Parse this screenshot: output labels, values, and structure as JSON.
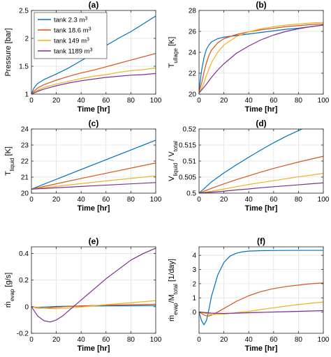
{
  "chart_data": [
    {
      "type": "line",
      "title": "(a)",
      "xlabel": "Time [hr]",
      "ylabel": "Pressure [bar]",
      "xlim": [
        0,
        100
      ],
      "ylim": [
        1,
        2.5
      ],
      "xticks": [
        0,
        20,
        40,
        60,
        80,
        100
      ],
      "yticks": [
        1,
        1.5,
        2,
        2.5
      ],
      "ytick_labels": [
        "1",
        "1.5",
        "2",
        "2.5"
      ],
      "legend": {
        "position": "top-left",
        "entries": [
          "tank 2.3 m3",
          "tank 18.6 m3",
          "tank 149 m3",
          "tank 1189 m3"
        ]
      },
      "series": [
        {
          "name": "tank 2.3 m3",
          "color": "#0072BD",
          "x": [
            0,
            2,
            5,
            10,
            15,
            20,
            30,
            40,
            50,
            60,
            70,
            80,
            90,
            100
          ],
          "y": [
            1.0,
            1.11,
            1.19,
            1.26,
            1.31,
            1.36,
            1.47,
            1.6,
            1.73,
            1.87,
            2.0,
            2.12,
            2.26,
            2.4
          ]
        },
        {
          "name": "tank 18.6 m3",
          "color": "#D95319",
          "x": [
            0,
            2,
            5,
            10,
            15,
            20,
            30,
            40,
            50,
            60,
            70,
            80,
            90,
            100
          ],
          "y": [
            1.0,
            1.05,
            1.11,
            1.17,
            1.21,
            1.25,
            1.32,
            1.38,
            1.43,
            1.49,
            1.55,
            1.61,
            1.67,
            1.73
          ]
        },
        {
          "name": "tank 149 m3",
          "color": "#EDB120",
          "x": [
            0,
            2,
            5,
            10,
            15,
            20,
            30,
            40,
            50,
            60,
            70,
            80,
            90,
            100
          ],
          "y": [
            1.0,
            1.03,
            1.07,
            1.12,
            1.15,
            1.18,
            1.23,
            1.28,
            1.32,
            1.35,
            1.39,
            1.42,
            1.44,
            1.47
          ]
        },
        {
          "name": "tank 1189 m3",
          "color": "#7E2F8E",
          "x": [
            0,
            2,
            5,
            10,
            15,
            20,
            30,
            40,
            50,
            60,
            70,
            80,
            90,
            100
          ],
          "y": [
            1.0,
            1.02,
            1.05,
            1.09,
            1.12,
            1.15,
            1.2,
            1.24,
            1.27,
            1.3,
            1.32,
            1.34,
            1.35,
            1.37
          ]
        }
      ]
    },
    {
      "type": "line",
      "title": "(b)",
      "xlabel": "Time [hr]",
      "ylabel": "T",
      "ylabel_sub": "ullage",
      "ylabel_suffix": " [K]",
      "xlim": [
        0,
        100
      ],
      "ylim": [
        20,
        28
      ],
      "xticks": [
        0,
        20,
        40,
        60,
        80,
        100
      ],
      "yticks": [
        20,
        22,
        24,
        26,
        28
      ],
      "ytick_labels": [
        "20",
        "22",
        "24",
        "26",
        "28"
      ],
      "series": [
        {
          "name": "tank 2.3 m3",
          "color": "#0072BD",
          "x": [
            0,
            2,
            4,
            6,
            8,
            10,
            15,
            20,
            30,
            40,
            50,
            60,
            70,
            80,
            90,
            100
          ],
          "y": [
            20.3,
            22.2,
            23.5,
            24.3,
            24.7,
            25.0,
            25.3,
            25.45,
            25.6,
            25.75,
            25.9,
            26.05,
            26.2,
            26.3,
            26.45,
            26.6
          ]
        },
        {
          "name": "tank 18.6 m3",
          "color": "#D95319",
          "x": [
            0,
            2,
            4,
            6,
            8,
            10,
            15,
            20,
            30,
            40,
            50,
            60,
            70,
            80,
            90,
            100
          ],
          "y": [
            20.2,
            21.0,
            22.1,
            23.0,
            23.7,
            24.2,
            24.9,
            25.3,
            25.7,
            25.95,
            26.15,
            26.3,
            26.45,
            26.55,
            26.65,
            26.7
          ]
        },
        {
          "name": "tank 149 m3",
          "color": "#EDB120",
          "x": [
            0,
            2,
            4,
            6,
            8,
            10,
            15,
            20,
            30,
            40,
            50,
            60,
            70,
            80,
            90,
            100
          ],
          "y": [
            20.1,
            20.5,
            21.1,
            21.8,
            22.4,
            23.0,
            24.0,
            24.7,
            25.5,
            25.95,
            26.25,
            26.45,
            26.6,
            26.7,
            26.8,
            26.85
          ]
        },
        {
          "name": "tank 1189 m3",
          "color": "#7E2F8E",
          "x": [
            0,
            5,
            10,
            15,
            20,
            30,
            40,
            50,
            60,
            70,
            80,
            90,
            100
          ],
          "y": [
            20.1,
            20.8,
            21.6,
            22.3,
            22.9,
            23.9,
            24.6,
            25.2,
            25.65,
            26.0,
            26.25,
            26.45,
            26.6
          ]
        }
      ]
    },
    {
      "type": "line",
      "title": "(c)",
      "xlabel": "Time [hr]",
      "ylabel": "T",
      "ylabel_sub": "liquid",
      "ylabel_suffix": " [K]",
      "xlim": [
        0,
        100
      ],
      "ylim": [
        20,
        24
      ],
      "xticks": [
        0,
        20,
        40,
        60,
        80,
        100
      ],
      "yticks": [
        20,
        21,
        22,
        23,
        24
      ],
      "ytick_labels": [
        "20",
        "21",
        "22",
        "23",
        "24"
      ],
      "series": [
        {
          "name": "tank 2.3 m3",
          "color": "#0072BD",
          "x": [
            0,
            50,
            100
          ],
          "y": [
            20.25,
            21.78,
            23.3
          ]
        },
        {
          "name": "tank 18.6 m3",
          "color": "#D95319",
          "x": [
            0,
            50,
            100
          ],
          "y": [
            20.25,
            21.08,
            21.88
          ]
        },
        {
          "name": "tank 149 m3",
          "color": "#EDB120",
          "x": [
            0,
            50,
            100
          ],
          "y": [
            20.25,
            20.68,
            21.08
          ]
        },
        {
          "name": "tank 1189 m3",
          "color": "#7E2F8E",
          "x": [
            0,
            50,
            100
          ],
          "y": [
            20.25,
            20.46,
            20.66
          ]
        }
      ]
    },
    {
      "type": "line",
      "title": "(d)",
      "xlabel": "Time [hr]",
      "ylabel": "V",
      "ylabel_sub": "liquid",
      "ylabel_mid": " / V",
      "ylabel_sub2": "total",
      "xlim": [
        0,
        100
      ],
      "ylim": [
        0.5,
        0.52
      ],
      "xticks": [
        0,
        20,
        40,
        60,
        80,
        100
      ],
      "yticks": [
        0.5,
        0.505,
        0.51,
        0.515,
        0.52
      ],
      "ytick_labels": [
        "0.5",
        "0.505",
        "0.51",
        "0.515",
        "0.52"
      ],
      "series": [
        {
          "name": "tank 2.3 m3",
          "color": "#0072BD",
          "x": [
            0,
            10,
            20,
            30,
            40,
            50,
            60,
            70,
            80,
            90,
            100
          ],
          "y": [
            0.5,
            0.5035,
            0.5063,
            0.5088,
            0.5112,
            0.5135,
            0.5157,
            0.5177,
            0.5195,
            0.5212,
            0.5227
          ]
        },
        {
          "name": "tank 18.6 m3",
          "color": "#D95319",
          "x": [
            0,
            10,
            20,
            30,
            40,
            50,
            60,
            70,
            80,
            90,
            100
          ],
          "y": [
            0.5,
            0.5015,
            0.5029,
            0.5042,
            0.5054,
            0.5066,
            0.5077,
            0.5087,
            0.5097,
            0.5106,
            0.5115
          ]
        },
        {
          "name": "tank 149 m3",
          "color": "#EDB120",
          "x": [
            0,
            10,
            20,
            30,
            40,
            50,
            60,
            70,
            80,
            90,
            100
          ],
          "y": [
            0.5,
            0.5006,
            0.5013,
            0.502,
            0.5027,
            0.5033,
            0.5039,
            0.5045,
            0.5051,
            0.5056,
            0.5062
          ]
        },
        {
          "name": "tank 1189 m3",
          "color": "#7E2F8E",
          "x": [
            0,
            10,
            20,
            30,
            40,
            50,
            60,
            70,
            80,
            90,
            100
          ],
          "y": [
            0.5,
            0.5003,
            0.5006,
            0.501,
            0.5013,
            0.5017,
            0.502,
            0.5023,
            0.5026,
            0.5029,
            0.5032
          ]
        }
      ]
    },
    {
      "type": "line",
      "title": "(e)",
      "xlabel": "Time [hr]",
      "ylabel": "ṁ",
      "ylabel_sub": "evap",
      "ylabel_suffix": " [g/s]",
      "xlim": [
        0,
        100
      ],
      "ylim": [
        -0.2,
        0.45
      ],
      "xticks": [
        0,
        20,
        40,
        60,
        80,
        100
      ],
      "yticks": [
        -0.2,
        0,
        0.2,
        0.4
      ],
      "ytick_labels": [
        "-0.2",
        "0",
        "0.2",
        "0.4"
      ],
      "series": [
        {
          "name": "tank 2.3 m3",
          "color": "#0072BD",
          "x": [
            0,
            5,
            10,
            20,
            40,
            60,
            80,
            100
          ],
          "y": [
            0.0,
            -0.005,
            -0.003,
            0.002,
            0.005,
            0.006,
            0.007,
            0.008
          ]
        },
        {
          "name": "tank 18.6 m3",
          "color": "#D95319",
          "x": [
            0,
            5,
            10,
            15,
            20,
            30,
            40,
            60,
            80,
            100
          ],
          "y": [
            0.0,
            -0.01,
            -0.012,
            -0.008,
            -0.004,
            0.002,
            0.006,
            0.011,
            0.015,
            0.018
          ]
        },
        {
          "name": "tank 149 m3",
          "color": "#EDB120",
          "x": [
            0,
            10,
            20,
            30,
            40,
            60,
            80,
            100
          ],
          "y": [
            0.0,
            -0.012,
            -0.015,
            -0.01,
            -0.002,
            0.015,
            0.03,
            0.045
          ]
        },
        {
          "name": "tank 1189 m3",
          "color": "#7E2F8E",
          "x": [
            0,
            5,
            10,
            15,
            20,
            25,
            30,
            35,
            40,
            50,
            60,
            70,
            80,
            90,
            100
          ],
          "y": [
            0.0,
            -0.07,
            -0.105,
            -0.115,
            -0.1,
            -0.07,
            -0.03,
            0.01,
            0.05,
            0.13,
            0.21,
            0.28,
            0.35,
            0.4,
            0.44
          ]
        }
      ]
    },
    {
      "type": "line",
      "title": "(f)",
      "xlabel": "Time [hr]",
      "ylabel": "ṁ",
      "ylabel_sub": "evap",
      "ylabel_mid": "/M",
      "ylabel_sub2": "total",
      "ylabel_suffix": " [1/day]",
      "xlim": [
        0,
        100
      ],
      "ylim": [
        -1.5,
        4.6
      ],
      "xticks": [
        0,
        20,
        40,
        60,
        80,
        100
      ],
      "yticks": [
        0,
        1,
        2,
        3,
        4
      ],
      "ytick_labels": [
        "0",
        "1",
        "2",
        "3",
        "4"
      ],
      "series": [
        {
          "name": "tank 2.3 m3",
          "color": "#0072BD",
          "x": [
            0,
            2,
            4,
            6,
            8,
            10,
            15,
            20,
            25,
            30,
            35,
            40,
            50,
            60,
            80,
            100
          ],
          "y": [
            0.0,
            -0.6,
            -0.9,
            -0.6,
            0.2,
            1.1,
            2.6,
            3.5,
            3.95,
            4.15,
            4.25,
            4.3,
            4.33,
            4.34,
            4.35,
            4.35
          ]
        },
        {
          "name": "tank 18.6 m3",
          "color": "#D95319",
          "x": [
            0,
            5,
            8,
            12,
            20,
            30,
            40,
            50,
            60,
            70,
            80,
            90,
            100
          ],
          "y": [
            0.0,
            -0.25,
            -0.28,
            -0.15,
            0.25,
            0.75,
            1.15,
            1.45,
            1.65,
            1.8,
            1.9,
            2.0,
            2.05
          ]
        },
        {
          "name": "tank 149 m3",
          "color": "#EDB120",
          "x": [
            0,
            10,
            20,
            30,
            40,
            50,
            60,
            70,
            80,
            90,
            100
          ],
          "y": [
            0.0,
            -0.18,
            -0.15,
            -0.05,
            0.05,
            0.18,
            0.3,
            0.42,
            0.53,
            0.62,
            0.7
          ]
        },
        {
          "name": "tank 1189 m3",
          "color": "#7E2F8E",
          "x": [
            0,
            10,
            20,
            30,
            40,
            60,
            80,
            100
          ],
          "y": [
            0.0,
            -0.08,
            -0.1,
            -0.08,
            -0.05,
            0.0,
            0.05,
            0.1
          ]
        }
      ]
    }
  ]
}
